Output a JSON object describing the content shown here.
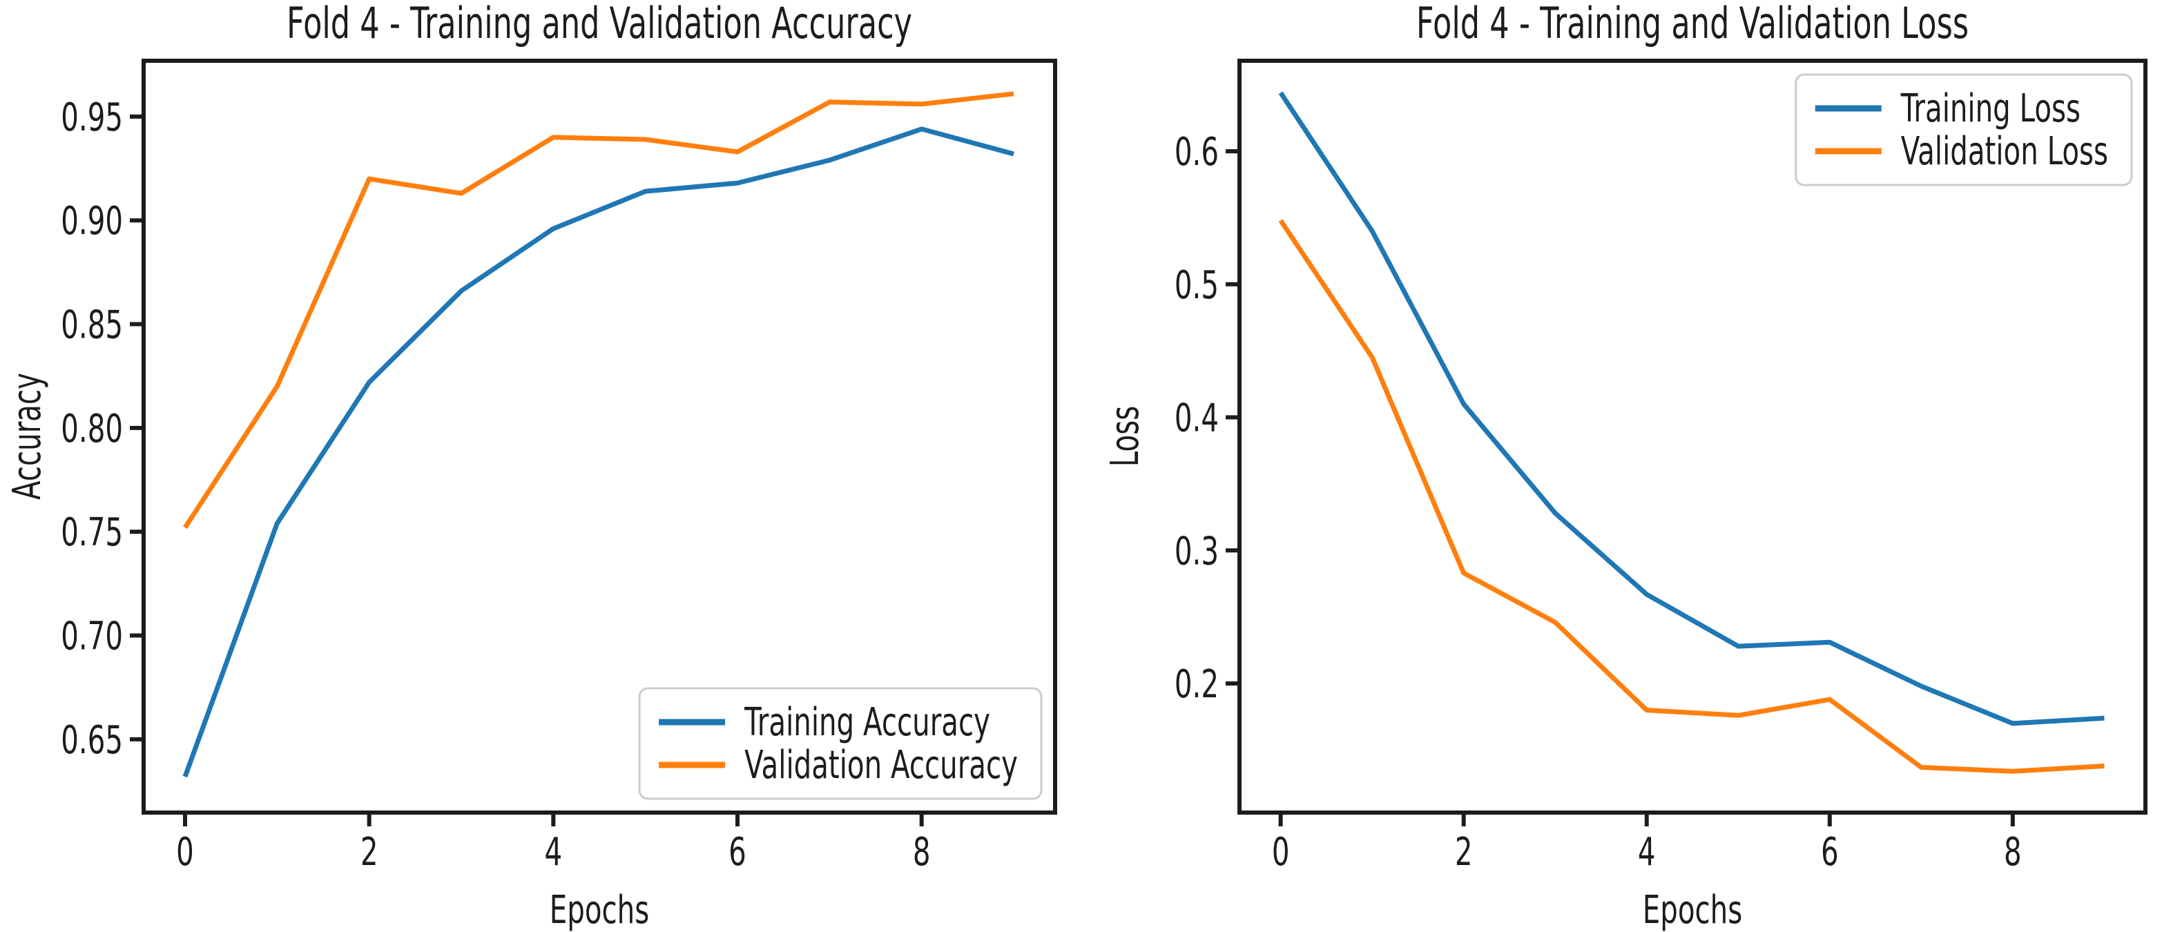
{
  "figure": {
    "background": "#ffffff",
    "text_color": "#1c1c1c",
    "spine_color": "#1c1c1c",
    "legend_border_color": "#cccccc",
    "legend_background": "#ffffff",
    "series_colors": {
      "blue": "#1f77b4",
      "orange": "#ff7f0e"
    }
  },
  "chart_data": [
    {
      "type": "line",
      "title": "Fold 4 - Training and Validation Accuracy",
      "xlabel": "Epochs",
      "ylabel": "Accuracy",
      "x": [
        0,
        1,
        2,
        3,
        4,
        5,
        6,
        7,
        8,
        9
      ],
      "series": [
        {
          "name": "Training Accuracy",
          "color": "#1f77b4",
          "values": [
            0.632,
            0.754,
            0.822,
            0.866,
            0.896,
            0.914,
            0.918,
            0.929,
            0.944,
            0.932
          ]
        },
        {
          "name": "Validation Accuracy",
          "color": "#ff7f0e",
          "values": [
            0.752,
            0.82,
            0.92,
            0.913,
            0.94,
            0.939,
            0.933,
            0.957,
            0.956,
            0.961
          ]
        }
      ],
      "xlim": [
        -0.45,
        9.45
      ],
      "ylim": [
        0.6147,
        0.9769
      ],
      "xticks": [
        0,
        2,
        4,
        6,
        8
      ],
      "xtick_labels": [
        "0",
        "2",
        "4",
        "6",
        "8"
      ],
      "yticks": [
        0.65,
        0.7,
        0.75,
        0.8,
        0.85,
        0.9,
        0.95
      ],
      "ytick_labels": [
        "0.65",
        "0.70",
        "0.75",
        "0.80",
        "0.85",
        "0.90",
        "0.95"
      ],
      "grid": false,
      "legend": {
        "position": "lower-right",
        "entries": [
          "Training Accuracy",
          "Validation Accuracy"
        ]
      }
    },
    {
      "type": "line",
      "title": "Fold 4 - Training and Validation Loss",
      "xlabel": "Epochs",
      "ylabel": "Loss",
      "x": [
        0,
        1,
        2,
        3,
        4,
        5,
        6,
        7,
        8,
        9
      ],
      "series": [
        {
          "name": "Training Loss",
          "color": "#1f77b4",
          "values": [
            0.644,
            0.54,
            0.41,
            0.328,
            0.267,
            0.228,
            0.231,
            0.198,
            0.17,
            0.174
          ]
        },
        {
          "name": "Validation Loss",
          "color": "#ff7f0e",
          "values": [
            0.548,
            0.445,
            0.283,
            0.246,
            0.18,
            0.176,
            0.188,
            0.137,
            0.134,
            0.138
          ]
        }
      ],
      "xlim": [
        -0.45,
        9.45
      ],
      "ylim": [
        0.103,
        0.668
      ],
      "xticks": [
        0,
        2,
        4,
        6,
        8
      ],
      "xtick_labels": [
        "0",
        "2",
        "4",
        "6",
        "8"
      ],
      "yticks": [
        0.2,
        0.3,
        0.4,
        0.5,
        0.6
      ],
      "ytick_labels": [
        "0.2",
        "0.3",
        "0.4",
        "0.5",
        "0.6"
      ],
      "grid": false,
      "legend": {
        "position": "upper-right",
        "entries": [
          "Training Loss",
          "Validation Loss"
        ]
      }
    }
  ]
}
